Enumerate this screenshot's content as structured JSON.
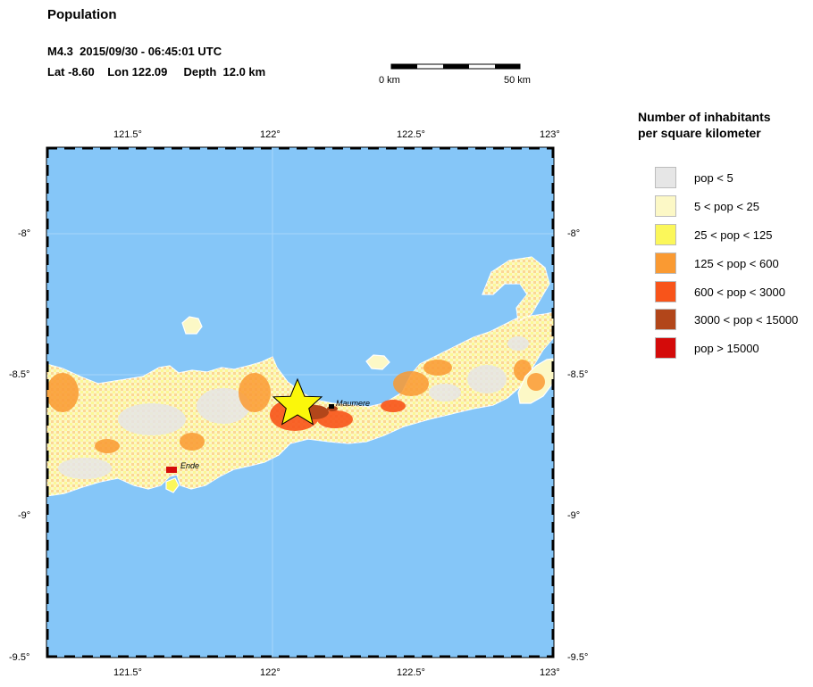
{
  "title": "Population",
  "event": {
    "line1": "M4.3  2015/09/30 - 06:45:01 UTC",
    "line2": "Lat -8.60    Lon 122.09     Depth  12.0 km"
  },
  "scale_bar": {
    "left_label": "0 km",
    "right_label": "50 km"
  },
  "legend": {
    "title": "Number of inhabitants\nper square kilometer",
    "items": [
      {
        "label": "pop < 5",
        "color": "#e6e6e6"
      },
      {
        "label": "5 < pop < 25",
        "color": "#fcf8c6"
      },
      {
        "label": "25 < pop < 125",
        "color": "#fbf75a"
      },
      {
        "label": "125 < pop < 600",
        "color": "#fa9a32"
      },
      {
        "label": "600 < pop < 3000",
        "color": "#f8541a"
      },
      {
        "label": "3000 < pop < 15000",
        "color": "#b2461a"
      },
      {
        "label": "pop > 15000",
        "color": "#d40b0a"
      }
    ]
  },
  "map": {
    "lon_ticks": [
      "121.5°",
      "122°",
      "122.5°",
      "123°"
    ],
    "lat_ticks": [
      "-8°",
      "-8.5°",
      "-9°",
      "-9.5°"
    ],
    "places": [
      "Maumere",
      "Ende"
    ],
    "colors": {
      "sea": "#85c6f8",
      "frame": "#000000"
    },
    "epicenter_marker": "star-icon"
  }
}
